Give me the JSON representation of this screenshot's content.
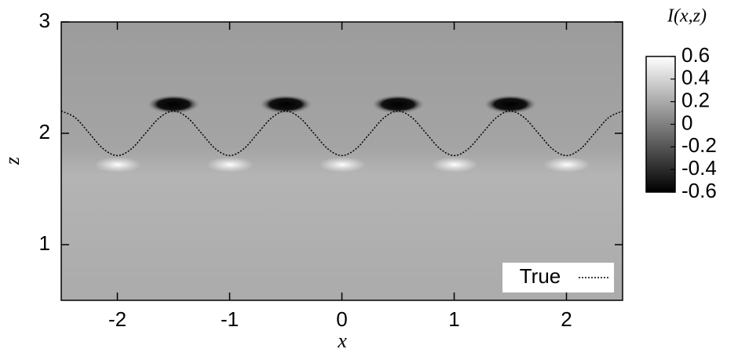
{
  "chart_data": {
    "type": "line",
    "x_label": "x",
    "y_label": "z",
    "x": [
      -2.5,
      -2.375,
      -2.25,
      -2.125,
      -2,
      -1.875,
      -1.75,
      -1.625,
      -1.5,
      -1.375,
      -1.25,
      -1.125,
      -1,
      -0.875,
      -0.75,
      -0.625,
      -0.5,
      -0.375,
      -0.25,
      -0.125,
      0,
      0.125,
      0.25,
      0.375,
      0.5,
      0.625,
      0.75,
      0.875,
      1,
      1.125,
      1.25,
      1.375,
      1.5,
      1.625,
      1.75,
      1.875,
      2,
      2.125,
      2.25,
      2.375,
      2.5
    ],
    "series": [
      {
        "name": "True",
        "color": "#000000",
        "dash": "dotted",
        "values": [
          2.2,
          2.14,
          2,
          1.86,
          1.8,
          1.86,
          2,
          2.14,
          2.2,
          2.14,
          2,
          1.86,
          1.8,
          1.86,
          2,
          2.14,
          2.2,
          2.14,
          2,
          1.86,
          1.8,
          1.86,
          2,
          2.14,
          2.2,
          2.14,
          2,
          1.86,
          1.8,
          1.86,
          2,
          2.14,
          2.2,
          2.14,
          2,
          1.86,
          1.8,
          1.86,
          2,
          2.14,
          2.2
        ]
      }
    ],
    "xlim": [
      -2.5,
      2.5
    ],
    "xticks": [
      -2,
      -1,
      0,
      1,
      2
    ],
    "ylim": [
      0.5,
      3
    ],
    "yticks": [
      1,
      2,
      3
    ],
    "legend": "lower right",
    "colorbar": {
      "title": "I(x,z)",
      "lim": [
        -0.6,
        0.6
      ],
      "ticks": [
        0.6,
        0.4,
        0.2,
        0,
        -0.2,
        -0.4,
        -0.6
      ],
      "colors": [
        "#000000",
        "#ffffff"
      ]
    }
  }
}
